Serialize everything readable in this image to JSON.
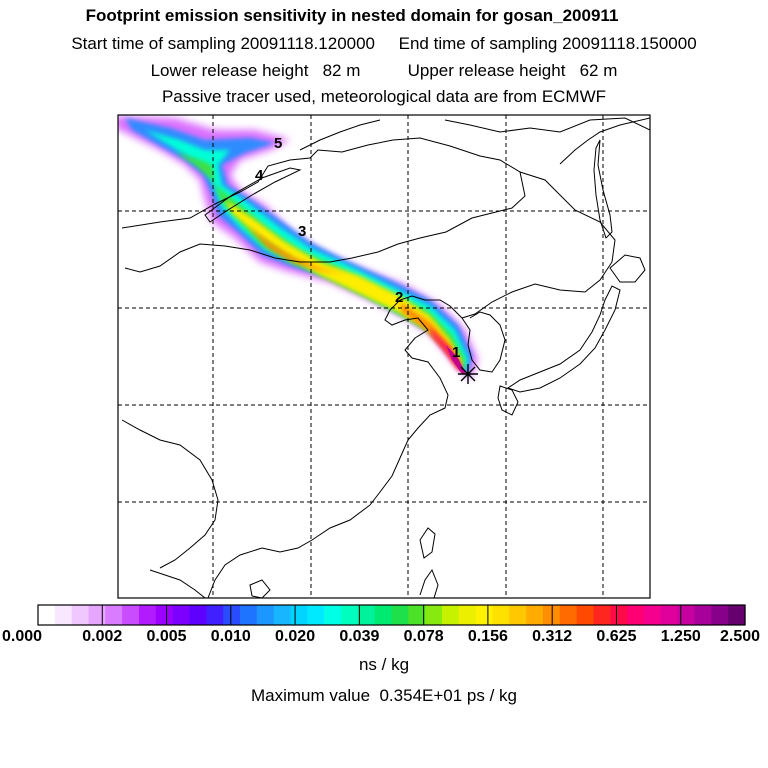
{
  "header": {
    "title": "Footprint emission sensitivity in nested domain for gosan_200911",
    "line2": "Start time of sampling 20091118.120000     End time of sampling 20091118.150000",
    "line3": "Lower release height   82 m          Upper release height   62 m",
    "line4": "Passive tracer used, meteorological data are from ECMWF"
  },
  "map": {
    "trajectory_labels": [
      "1",
      "2",
      "3",
      "4",
      "5"
    ],
    "receptor_marker": "asterisk"
  },
  "colorbar": {
    "tick_labels": [
      "0.000",
      "0.002",
      "0.005",
      "0.010",
      "0.020",
      "0.039",
      "0.078",
      "0.156",
      "0.312",
      "0.625",
      "1.250",
      "2.500"
    ],
    "colors": [
      "#ffffff",
      "#f9e7ff",
      "#f0c8ff",
      "#e6a6ff",
      "#d97cff",
      "#c94cff",
      "#b31bff",
      "#9b00ff",
      "#7d00ff",
      "#5f00ff",
      "#4020ff",
      "#2a4cff",
      "#1f74ff",
      "#1c97ff",
      "#18b6ff",
      "#00d4ff",
      "#00eaff",
      "#00ffe6",
      "#00ffbf",
      "#00f39a",
      "#00ea72",
      "#1ee04a",
      "#4de128",
      "#86ea10",
      "#c6f200",
      "#ecf000",
      "#fff200",
      "#ffe100",
      "#ffc800",
      "#ffab00",
      "#ff8d00",
      "#ff6b00",
      "#ff4800",
      "#ff2620",
      "#ff0a48",
      "#ff0074",
      "#f5008e",
      "#e0009c",
      "#c700a0",
      "#a8009a",
      "#87008a",
      "#66006f"
    ],
    "units": "ns / kg"
  },
  "footer": {
    "max_value": "Maximum value  0.354E+01 ps / kg"
  }
}
